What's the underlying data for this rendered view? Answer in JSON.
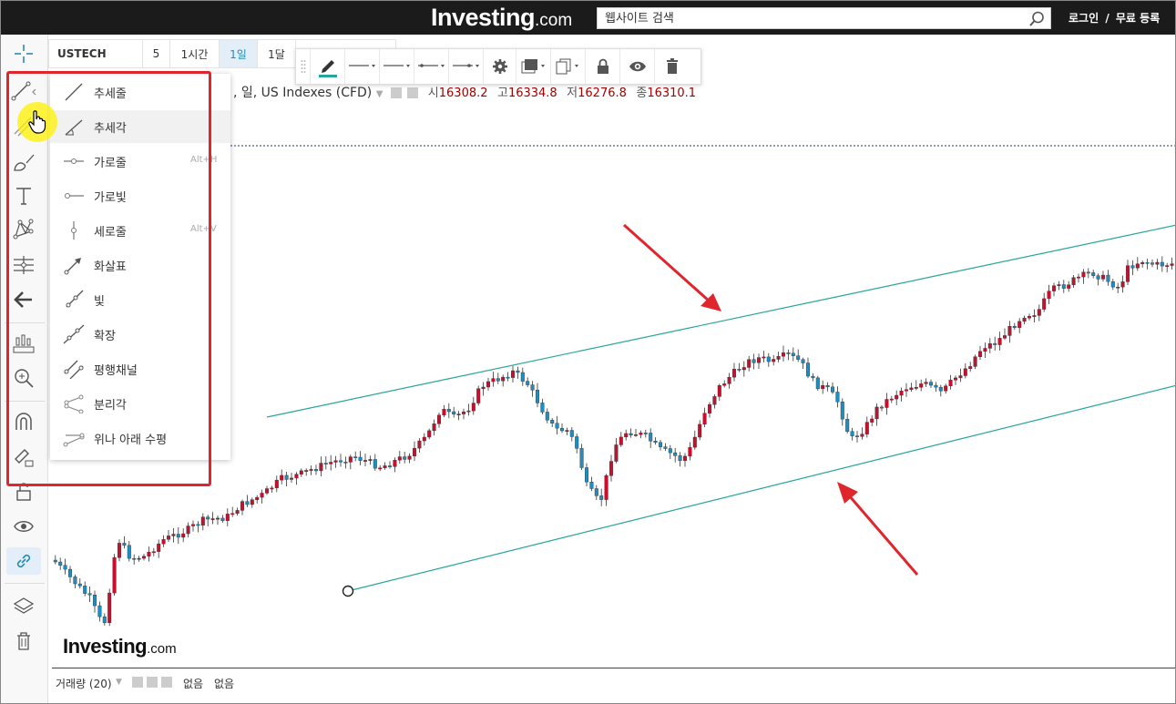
{
  "header": {
    "logo_main": "Investing",
    "logo_suffix": ".com",
    "search_placeholder": "웹사이트 검색",
    "login": "로그인",
    "separator": "/",
    "register": "무료 등록"
  },
  "symbol_bar": {
    "symbol": "USTECH",
    "intervals": [
      {
        "label": "5",
        "active": false
      },
      {
        "label": "1시간",
        "active": false
      },
      {
        "label": "1일",
        "active": true
      },
      {
        "label": "1달",
        "active": false
      }
    ]
  },
  "legend": {
    "title_text": ", 일, US Indexes (CFD)",
    "open_label": "시",
    "open": "16308.2",
    "high_label": "고",
    "high": "16334.8",
    "low_label": "저",
    "low": "16276.8",
    "close_label": "종",
    "close": "16310.1"
  },
  "draw_menu": {
    "items": [
      {
        "label": "추세줄",
        "shortcut": "",
        "icon": "trend-line-icon"
      },
      {
        "label": "추세각",
        "shortcut": "",
        "icon": "trend-angle-icon"
      },
      {
        "label": "가로줄",
        "shortcut": "Alt+H",
        "icon": "horizontal-line-icon"
      },
      {
        "label": "가로빛",
        "shortcut": "",
        "icon": "horizontal-ray-icon"
      },
      {
        "label": "세로줄",
        "shortcut": "Alt+V",
        "icon": "vertical-line-icon"
      },
      {
        "label": "화살표",
        "shortcut": "",
        "icon": "arrow-line-icon"
      },
      {
        "label": "빛",
        "shortcut": "",
        "icon": "ray-icon"
      },
      {
        "label": "확장",
        "shortcut": "",
        "icon": "extended-line-icon"
      },
      {
        "label": "평행채널",
        "shortcut": "",
        "icon": "parallel-channel-icon"
      },
      {
        "label": "분리각",
        "shortcut": "",
        "icon": "disjoint-angle-icon"
      },
      {
        "label": "위나 아래 수평",
        "shortcut": "",
        "icon": "flat-top-bottom-icon"
      }
    ]
  },
  "bottom_bar": {
    "volume_label": "거래량 (20)",
    "value1": "없음",
    "value2": "없음"
  },
  "watermark": {
    "main": "Investing",
    "suffix": ".com"
  },
  "colors": {
    "up": "#c8102e",
    "down": "#1d8ec4",
    "channel": "#26a69a",
    "annotation": "#e0262d"
  }
}
